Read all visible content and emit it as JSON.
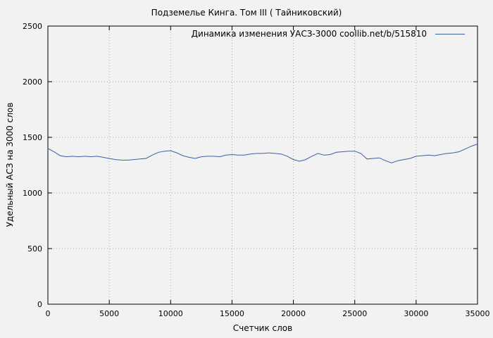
{
  "title": "Подземелье Кинга. Том III ( Тайниковский)",
  "legend": {
    "label": "Динамика изменения УАСЗ-3000  coollib.net/b/515810"
  },
  "chart_data": {
    "type": "line",
    "title": "Подземелье Кинга. Том III ( Тайниковский)",
    "xlabel": "Счетчик слов",
    "ylabel": "Удельный АСЗ на 3000 слов",
    "xlim": [
      0,
      35000
    ],
    "ylim": [
      0,
      2500
    ],
    "xticks": [
      0,
      5000,
      10000,
      15000,
      20000,
      25000,
      30000,
      35000
    ],
    "yticks": [
      0,
      500,
      1000,
      1500,
      2000,
      2500
    ],
    "grid": true,
    "legend_position": "top-right-inside",
    "line_color": "#3b5fa5",
    "grid_color": "#a8a8a8",
    "background_color": "#f2f2f2",
    "x": [
      0,
      500,
      1000,
      1500,
      2000,
      2500,
      3000,
      3500,
      4000,
      4500,
      5000,
      5500,
      6000,
      6500,
      7000,
      7500,
      8000,
      8500,
      9000,
      9500,
      10000,
      10500,
      11000,
      11500,
      12000,
      12500,
      13000,
      13500,
      14000,
      14500,
      15000,
      15500,
      16000,
      16500,
      17000,
      17500,
      18000,
      18500,
      19000,
      19500,
      20000,
      20500,
      21000,
      21500,
      22000,
      22500,
      23000,
      23500,
      24000,
      24500,
      25000,
      25500,
      26000,
      26500,
      27000,
      27500,
      28000,
      28500,
      29000,
      29500,
      30000,
      30500,
      31000,
      31500,
      32000,
      32500,
      33000,
      33500,
      34000,
      34500,
      35000
    ],
    "series": [
      {
        "name": "Динамика изменения УАСЗ-3000  coollib.net/b/515810",
        "values": [
          1400,
          1370,
          1335,
          1325,
          1330,
          1325,
          1330,
          1325,
          1330,
          1320,
          1310,
          1300,
          1295,
          1295,
          1300,
          1305,
          1310,
          1340,
          1365,
          1375,
          1380,
          1360,
          1335,
          1320,
          1310,
          1325,
          1330,
          1330,
          1325,
          1340,
          1345,
          1340,
          1340,
          1350,
          1355,
          1355,
          1360,
          1355,
          1350,
          1330,
          1300,
          1285,
          1300,
          1330,
          1355,
          1340,
          1345,
          1365,
          1370,
          1375,
          1375,
          1355,
          1305,
          1310,
          1315,
          1290,
          1270,
          1290,
          1300,
          1310,
          1330,
          1335,
          1340,
          1335,
          1345,
          1355,
          1360,
          1370,
          1395,
          1420,
          1440
        ]
      }
    ]
  }
}
